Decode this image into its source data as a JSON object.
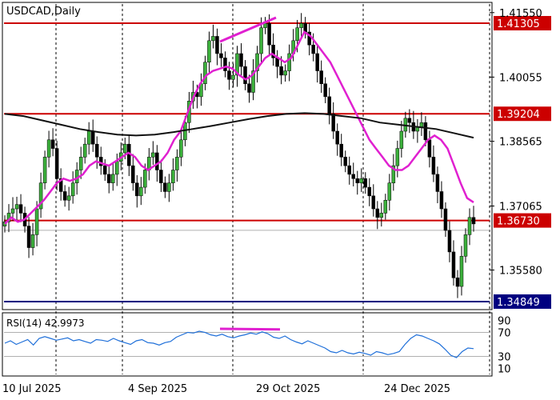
{
  "chart_data": {
    "type": "candlestick",
    "title": "USDCAD,Daily",
    "price_axis": {
      "ticks": [
        "1.41550",
        "1.40055",
        "1.38565",
        "1.37065",
        "1.35580"
      ],
      "tick_values": [
        1.4155,
        1.40055,
        1.38565,
        1.37065,
        1.3558
      ],
      "ylim": [
        1.347,
        1.4175
      ]
    },
    "x_axis": {
      "labels": [
        "10 Jul 2025",
        "4 Sep 2025",
        "29 Oct 2025",
        "24 Dec 2025"
      ]
    },
    "levels": [
      {
        "name": "resistance-top",
        "value": 1.41305,
        "label": "1.41305",
        "color": "#cc0000"
      },
      {
        "name": "resistance-mid",
        "value": 1.39204,
        "label": "1.39204",
        "color": "#cc0000"
      },
      {
        "name": "support-mid",
        "value": 1.3673,
        "label": "1.36730",
        "color": "#cc0000"
      },
      {
        "name": "support-low",
        "value": 1.34849,
        "label": "1.34849",
        "color": "#000080"
      }
    ],
    "close_series": [
      1.367,
      1.369,
      1.37,
      1.371,
      1.369,
      1.366,
      1.361,
      1.364,
      1.37,
      1.376,
      1.382,
      1.386,
      1.384,
      1.377,
      1.374,
      1.372,
      1.373,
      1.376,
      1.379,
      1.382,
      1.385,
      1.388,
      1.385,
      1.382,
      1.38,
      1.378,
      1.376,
      1.378,
      1.381,
      1.383,
      1.385,
      1.38,
      1.376,
      1.373,
      1.375,
      1.379,
      1.382,
      1.383,
      1.379,
      1.376,
      1.374,
      1.376,
      1.379,
      1.382,
      1.386,
      1.39,
      1.395,
      1.397,
      1.396,
      1.399,
      1.404,
      1.409,
      1.41,
      1.406,
      1.405,
      1.402,
      1.4,
      1.401,
      1.406,
      1.403,
      1.399,
      1.397,
      1.402,
      1.406,
      1.412,
      1.413,
      1.408,
      1.405,
      1.403,
      1.401,
      1.402,
      1.406,
      1.409,
      1.412,
      1.413,
      1.411,
      1.408,
      1.406,
      1.402,
      1.399,
      1.396,
      1.392,
      1.388,
      1.385,
      1.382,
      1.38,
      1.378,
      1.377,
      1.376,
      1.377,
      1.375,
      1.373,
      1.37,
      1.368,
      1.369,
      1.372,
      1.376,
      1.38,
      1.384,
      1.388,
      1.391,
      1.39,
      1.388,
      1.389,
      1.39,
      1.386,
      1.382,
      1.378,
      1.374,
      1.37,
      1.365,
      1.36,
      1.354,
      1.352,
      1.359,
      1.364,
      1.368,
      1.3665
    ],
    "ma_fast": {
      "name": "MA fast",
      "color": "#e020d0",
      "values": [
        1.3665,
        1.368,
        1.367,
        1.3675,
        1.369,
        1.3705,
        1.372,
        1.374,
        1.376,
        1.377,
        1.3765,
        1.377,
        1.378,
        1.38,
        1.381,
        1.3805,
        1.38,
        1.381,
        1.382,
        1.383,
        1.382,
        1.38,
        1.379,
        1.38,
        1.381,
        1.383,
        1.386,
        1.388,
        1.392,
        1.396,
        1.399,
        1.401,
        1.402,
        1.4025,
        1.403,
        1.4025,
        1.401,
        1.4,
        1.401,
        1.403,
        1.405,
        1.406,
        1.405,
        1.404,
        1.405,
        1.408,
        1.411,
        1.41,
        1.408,
        1.406,
        1.404,
        1.401,
        1.398,
        1.395,
        1.392,
        1.389,
        1.386,
        1.384,
        1.382,
        1.38,
        1.379,
        1.379,
        1.38,
        1.382,
        1.384,
        1.386,
        1.387,
        1.386,
        1.384,
        1.38,
        1.376,
        1.3725,
        1.3715
      ]
    },
    "ma_slow": {
      "name": "MA slow",
      "color": "#111111",
      "values": [
        1.392,
        1.3915,
        1.3905,
        1.3895,
        1.3885,
        1.3878,
        1.3872,
        1.387,
        1.3872,
        1.3878,
        1.3885,
        1.3892,
        1.39,
        1.3908,
        1.3915,
        1.392,
        1.3922,
        1.392,
        1.3915,
        1.391,
        1.39,
        1.3895,
        1.389,
        1.3885,
        1.3875,
        1.3865
      ]
    },
    "trend_annotations": [
      {
        "name": "price-highs-trendline",
        "color": "#e020d0"
      },
      {
        "name": "rsi-highs-trendline",
        "color": "#e020d0"
      }
    ],
    "rsi": {
      "label": "RSI(14) 42.9973",
      "levels": [
        70,
        30
      ],
      "ticks": [
        "90",
        "70",
        "30",
        "10"
      ],
      "ylim": [
        0,
        100
      ],
      "color": "#1e6fd9",
      "values": [
        52,
        56,
        50,
        54,
        58,
        49,
        60,
        63,
        60,
        57,
        59,
        61,
        56,
        58,
        55,
        52,
        58,
        57,
        55,
        60,
        56,
        53,
        50,
        56,
        58,
        53,
        52,
        49,
        53,
        55,
        62,
        66,
        70,
        69,
        72,
        70,
        66,
        64,
        67,
        63,
        61,
        64,
        66,
        69,
        67,
        71,
        68,
        62,
        60,
        64,
        58,
        54,
        51,
        56,
        52,
        48,
        44,
        38,
        36,
        40,
        36,
        34,
        37,
        35,
        32,
        38,
        36,
        33,
        35,
        38,
        50,
        60,
        66,
        64,
        60,
        56,
        51,
        42,
        32,
        28,
        38,
        44,
        43
      ]
    }
  }
}
